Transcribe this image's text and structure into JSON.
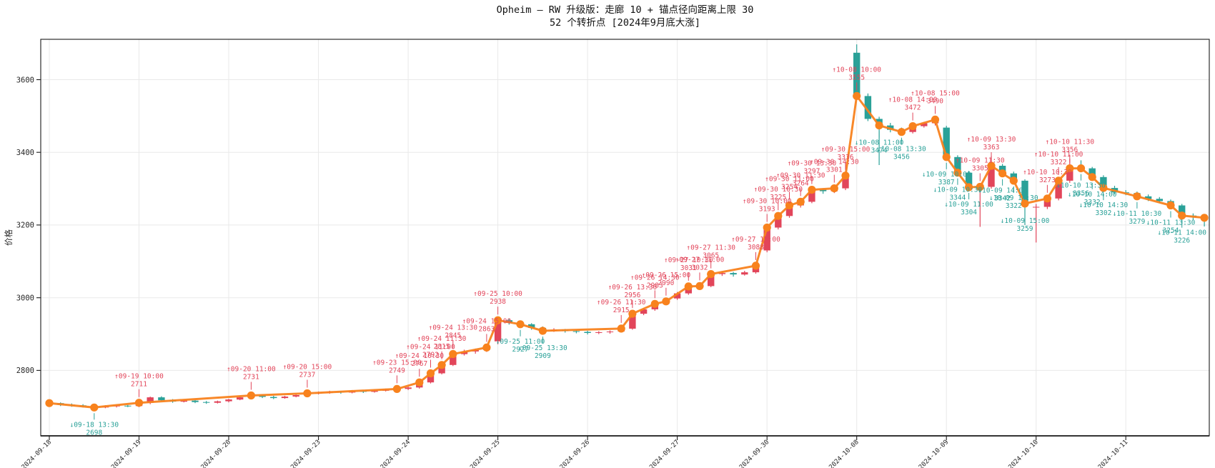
{
  "title": {
    "line1": "Opheim — RW 升级版：走廊 10 + 锚点径向距离上限 30",
    "line2": "52 个转折点 [2024年9月底大涨]"
  },
  "axes": {
    "ylabel": "价格",
    "yticks": [
      2800,
      3000,
      3200,
      3400,
      3600
    ],
    "xticks": [
      "2024-09-18",
      "2024-09-19",
      "2024-09-20",
      "2024-09-23",
      "2024-09-24",
      "2024-09-25",
      "2024-09-26",
      "2024-09-27",
      "2024-09-30",
      "2024-10-08",
      "2024-10-09",
      "2024-10-10",
      "2024-10-11"
    ]
  },
  "colors": {
    "up_candle": "#e2455a",
    "down_candle": "#2aa198",
    "zigzag_line": "#f8821d",
    "marker": "#f8821d",
    "up_label": "#e2455a",
    "down_label": "#2aa198",
    "grid": "#e9e9e9",
    "spine": "#1a1a1a",
    "tick_text": "#262626"
  },
  "chart_data": {
    "type": "candlestick",
    "overlay": "zigzag turning-point line with markers",
    "bars_per_day": 8,
    "bar_times": [
      "10:00",
      "10:30",
      "11:00",
      "11:30",
      "13:30",
      "14:00",
      "14:30",
      "15:00"
    ],
    "days": [
      "2024-09-18",
      "2024-09-19",
      "2024-09-20",
      "2024-09-23",
      "2024-09-24",
      "2024-09-25",
      "2024-09-26",
      "2024-09-27",
      "2024-09-30",
      "2024-10-08",
      "2024-10-09",
      "2024-10-10",
      "2024-10-11"
    ],
    "ylim": [
      2620,
      3711
    ],
    "grid": true,
    "ohlc": [
      [
        2708,
        2714,
        2704,
        2710
      ],
      [
        2710,
        2712,
        2702,
        2706
      ],
      [
        2706,
        2709,
        2700,
        2704
      ],
      [
        2704,
        2707,
        2698,
        2701
      ],
      [
        2701,
        2704,
        2694,
        2698
      ],
      [
        2698,
        2704,
        2696,
        2701
      ],
      [
        2701,
        2706,
        2698,
        2703
      ],
      [
        2703,
        2705,
        2699,
        2702
      ],
      [
        2702,
        2713,
        2699,
        2711
      ],
      [
        2711,
        2728,
        2707,
        2726
      ],
      [
        2726,
        2729,
        2716,
        2718
      ],
      [
        2718,
        2721,
        2711,
        2714
      ],
      [
        2714,
        2719,
        2712,
        2717
      ],
      [
        2717,
        2719,
        2710,
        2713
      ],
      [
        2713,
        2716,
        2708,
        2711
      ],
      [
        2711,
        2717,
        2709,
        2715
      ],
      [
        2715,
        2722,
        2712,
        2720
      ],
      [
        2720,
        2728,
        2718,
        2726
      ],
      [
        2726,
        2734,
        2723,
        2731
      ],
      [
        2731,
        2733,
        2724,
        2727
      ],
      [
        2727,
        2730,
        2721,
        2724
      ],
      [
        2724,
        2730,
        2722,
        2728
      ],
      [
        2728,
        2735,
        2726,
        2732
      ],
      [
        2732,
        2740,
        2730,
        2737
      ],
      [
        2737,
        2742,
        2734,
        2738
      ],
      [
        2738,
        2744,
        2736,
        2741
      ],
      [
        2741,
        2743,
        2736,
        2739
      ],
      [
        2739,
        2746,
        2737,
        2743
      ],
      [
        2743,
        2745,
        2738,
        2741
      ],
      [
        2741,
        2747,
        2739,
        2744
      ],
      [
        2744,
        2750,
        2742,
        2747
      ],
      [
        2747,
        2753,
        2744,
        2749
      ],
      [
        2749,
        2756,
        2746,
        2753
      ],
      [
        2753,
        2770,
        2750,
        2767
      ],
      [
        2767,
        2796,
        2764,
        2792
      ],
      [
        2792,
        2819,
        2789,
        2815
      ],
      [
        2815,
        2849,
        2812,
        2845
      ],
      [
        2845,
        2857,
        2841,
        2852
      ],
      [
        2852,
        2860,
        2846,
        2856
      ],
      [
        2856,
        2868,
        2851,
        2863
      ],
      [
        2880,
        2946,
        2872,
        2938
      ],
      [
        2938,
        2942,
        2926,
        2931
      ],
      [
        2931,
        2935,
        2922,
        2927
      ],
      [
        2927,
        2930,
        2912,
        2917
      ],
      [
        2917,
        2921,
        2904,
        2909
      ],
      [
        2909,
        2916,
        2906,
        2912
      ],
      [
        2912,
        2914,
        2904,
        2908
      ],
      [
        2908,
        2911,
        2902,
        2906
      ],
      [
        2906,
        2909,
        2899,
        2903
      ],
      [
        2903,
        2908,
        2900,
        2905
      ],
      [
        2905,
        2910,
        2901,
        2907
      ],
      [
        2907,
        2918,
        2904,
        2915
      ],
      [
        2915,
        2960,
        2912,
        2956
      ],
      [
        2956,
        2972,
        2952,
        2968
      ],
      [
        2968,
        2987,
        2964,
        2983
      ],
      [
        2983,
        2994,
        2980,
        2990
      ],
      [
        2998,
        3016,
        2994,
        3012
      ],
      [
        3012,
        3035,
        3008,
        3031
      ],
      [
        3031,
        3038,
        3026,
        3032
      ],
      [
        3032,
        3069,
        3029,
        3065
      ],
      [
        3065,
        3072,
        3060,
        3068
      ],
      [
        3068,
        3071,
        3058,
        3064
      ],
      [
        3064,
        3074,
        3061,
        3070
      ],
      [
        3070,
        3092,
        3066,
        3088
      ],
      [
        3130,
        3198,
        3125,
        3193
      ],
      [
        3193,
        3230,
        3188,
        3225
      ],
      [
        3225,
        3259,
        3220,
        3254
      ],
      [
        3254,
        3269,
        3248,
        3264
      ],
      [
        3264,
        3302,
        3260,
        3297
      ],
      [
        3297,
        3300,
        3286,
        3293
      ],
      [
        3293,
        3306,
        3288,
        3301
      ],
      [
        3301,
        3341,
        3296,
        3336
      ],
      [
        3674,
        3697,
        3548,
        3555
      ],
      [
        3555,
        3562,
        3486,
        3492
      ],
      [
        3492,
        3498,
        3365,
        3474
      ],
      [
        3474,
        3481,
        3455,
        3462
      ],
      [
        3462,
        3468,
        3448,
        3456
      ],
      [
        3456,
        3476,
        3452,
        3472
      ],
      [
        3472,
        3484,
        3468,
        3480
      ],
      [
        3480,
        3496,
        3474,
        3490
      ],
      [
        3468,
        3473,
        3380,
        3387
      ],
      [
        3387,
        3392,
        3338,
        3344
      ],
      [
        3344,
        3349,
        3296,
        3304
      ],
      [
        3304,
        3312,
        3195,
        3305
      ],
      [
        3305,
        3390,
        3300,
        3363
      ],
      [
        3363,
        3368,
        3336,
        3342
      ],
      [
        3342,
        3347,
        3315,
        3322
      ],
      [
        3322,
        3326,
        3200,
        3259
      ],
      [
        3248,
        3258,
        3152,
        3250
      ],
      [
        3250,
        3278,
        3244,
        3273
      ],
      [
        3273,
        3328,
        3268,
        3322
      ],
      [
        3322,
        3382,
        3316,
        3356
      ],
      [
        3358,
        3378,
        3350,
        3356
      ],
      [
        3356,
        3360,
        3326,
        3332
      ],
      [
        3332,
        3337,
        3296,
        3302
      ],
      [
        3302,
        3308,
        3284,
        3290
      ],
      [
        3290,
        3296,
        3282,
        3288
      ],
      [
        3288,
        3292,
        3272,
        3279
      ],
      [
        3279,
        3284,
        3266,
        3272
      ],
      [
        3272,
        3277,
        3260,
        3266
      ],
      [
        3266,
        3270,
        3248,
        3254
      ],
      [
        3254,
        3258,
        3205,
        3226
      ],
      [
        3226,
        3232,
        3214,
        3222
      ],
      [
        3222,
        3230,
        3196,
        3220
      ]
    ],
    "turning_points": [
      {
        "i": 0,
        "p": 2710,
        "dir": null,
        "d": "",
        "t": ""
      },
      {
        "i": 4,
        "p": 2698,
        "dir": "down",
        "d": "09-18",
        "t": "13:30"
      },
      {
        "i": 8,
        "p": 2711,
        "dir": "up",
        "d": "09-19",
        "t": "10:00"
      },
      {
        "i": 18,
        "p": 2731,
        "dir": "up",
        "d": "09-20",
        "t": "11:00"
      },
      {
        "i": 23,
        "p": 2737,
        "dir": "up",
        "d": "09-20",
        "t": "15:00"
      },
      {
        "i": 31,
        "p": 2749,
        "dir": "up",
        "d": "09-23",
        "t": "15:00"
      },
      {
        "i": 33,
        "p": 2767,
        "dir": "up",
        "d": "09-24",
        "t": "10:30"
      },
      {
        "i": 34,
        "p": 2792,
        "dir": "up",
        "d": "09-24",
        "t": "11:00"
      },
      {
        "i": 35,
        "p": 2815,
        "dir": "up",
        "d": "09-24",
        "t": "11:30"
      },
      {
        "i": 36,
        "p": 2845,
        "dir": "up",
        "d": "09-24",
        "t": "13:30"
      },
      {
        "i": 39,
        "p": 2863,
        "dir": "up",
        "d": "09-24",
        "t": "15:00"
      },
      {
        "i": 40,
        "p": 2938,
        "dir": "up",
        "d": "09-25",
        "t": "10:00"
      },
      {
        "i": 42,
        "p": 2927,
        "dir": "down",
        "d": "09-25",
        "t": "11:00"
      },
      {
        "i": 44,
        "p": 2909,
        "dir": "down",
        "d": "09-25",
        "t": "13:30"
      },
      {
        "i": 51,
        "p": 2915,
        "dir": "up",
        "d": "09-26",
        "t": "11:30"
      },
      {
        "i": 52,
        "p": 2956,
        "dir": "up",
        "d": "09-26",
        "t": "13:30"
      },
      {
        "i": 54,
        "p": 2983,
        "dir": "up",
        "d": "09-26",
        "t": "14:30"
      },
      {
        "i": 55,
        "p": 2990,
        "dir": "up",
        "d": "09-26",
        "t": "15:00"
      },
      {
        "i": 57,
        "p": 3031,
        "dir": "up",
        "d": "09-27",
        "t": "10:30"
      },
      {
        "i": 58,
        "p": 3032,
        "dir": "up",
        "d": "09-27",
        "t": "11:00"
      },
      {
        "i": 59,
        "p": 3065,
        "dir": "up",
        "d": "09-27",
        "t": "11:30"
      },
      {
        "i": 63,
        "p": 3088,
        "dir": "up",
        "d": "09-27",
        "t": "15:00"
      },
      {
        "i": 64,
        "p": 3193,
        "dir": "up",
        "d": "09-30",
        "t": "10:00"
      },
      {
        "i": 65,
        "p": 3225,
        "dir": "up",
        "d": "09-30",
        "t": "10:30"
      },
      {
        "i": 66,
        "p": 3254,
        "dir": "up",
        "d": "09-30",
        "t": "11:00"
      },
      {
        "i": 67,
        "p": 3264,
        "dir": "up",
        "d": "09-30",
        "t": "11:30"
      },
      {
        "i": 68,
        "p": 3297,
        "dir": "up",
        "d": "09-30",
        "t": "13:30"
      },
      {
        "i": 70,
        "p": 3301,
        "dir": "up",
        "d": "09-30",
        "t": "14:30"
      },
      {
        "i": 71,
        "p": 3336,
        "dir": "up",
        "d": "09-30",
        "t": "15:00"
      },
      {
        "i": 72,
        "p": 3555,
        "dir": "up",
        "d": "10-08",
        "t": "10:00"
      },
      {
        "i": 74,
        "p": 3474,
        "dir": "down",
        "d": "10-08",
        "t": "11:00"
      },
      {
        "i": 76,
        "p": 3456,
        "dir": "down",
        "d": "10-08",
        "t": "13:30"
      },
      {
        "i": 77,
        "p": 3472,
        "dir": "up",
        "d": "10-08",
        "t": "14:00"
      },
      {
        "i": 79,
        "p": 3490,
        "dir": "up",
        "d": "10-08",
        "t": "15:00"
      },
      {
        "i": 80,
        "p": 3387,
        "dir": "down",
        "d": "10-09",
        "t": "10:00"
      },
      {
        "i": 81,
        "p": 3344,
        "dir": "down",
        "d": "10-09",
        "t": "10:30"
      },
      {
        "i": 82,
        "p": 3304,
        "dir": "down",
        "d": "10-09",
        "t": "11:00"
      },
      {
        "i": 83,
        "p": 3305,
        "dir": "up",
        "d": "10-09",
        "t": "11:30"
      },
      {
        "i": 84,
        "p": 3363,
        "dir": "up",
        "d": "10-09",
        "t": "13:30"
      },
      {
        "i": 85,
        "p": 3342,
        "dir": "down",
        "d": "10-09",
        "t": "14:00"
      },
      {
        "i": 86,
        "p": 3322,
        "dir": "down",
        "d": "10-09",
        "t": "14:30"
      },
      {
        "i": 87,
        "p": 3259,
        "dir": "down",
        "d": "10-09",
        "t": "15:00"
      },
      {
        "i": 89,
        "p": 3273,
        "dir": "up",
        "d": "10-10",
        "t": "10:30"
      },
      {
        "i": 90,
        "p": 3322,
        "dir": "up",
        "d": "10-10",
        "t": "11:00"
      },
      {
        "i": 91,
        "p": 3356,
        "dir": "up",
        "d": "10-10",
        "t": "11:30"
      },
      {
        "i": 92,
        "p": 3356,
        "dir": "down",
        "d": "10-10",
        "t": "13:30"
      },
      {
        "i": 93,
        "p": 3332,
        "dir": "down",
        "d": "10-10",
        "t": "14:00"
      },
      {
        "i": 94,
        "p": 3302,
        "dir": "down",
        "d": "10-10",
        "t": "14:30"
      },
      {
        "i": 97,
        "p": 3279,
        "dir": "down",
        "d": "10-11",
        "t": "10:30"
      },
      {
        "i": 100,
        "p": 3254,
        "dir": "down",
        "d": "10-11",
        "t": "13:30"
      },
      {
        "i": 101,
        "p": 3226,
        "dir": "down",
        "d": "10-11",
        "t": "14:00"
      },
      {
        "i": 103,
        "p": 3220,
        "dir": null,
        "d": "",
        "t": ""
      }
    ]
  }
}
